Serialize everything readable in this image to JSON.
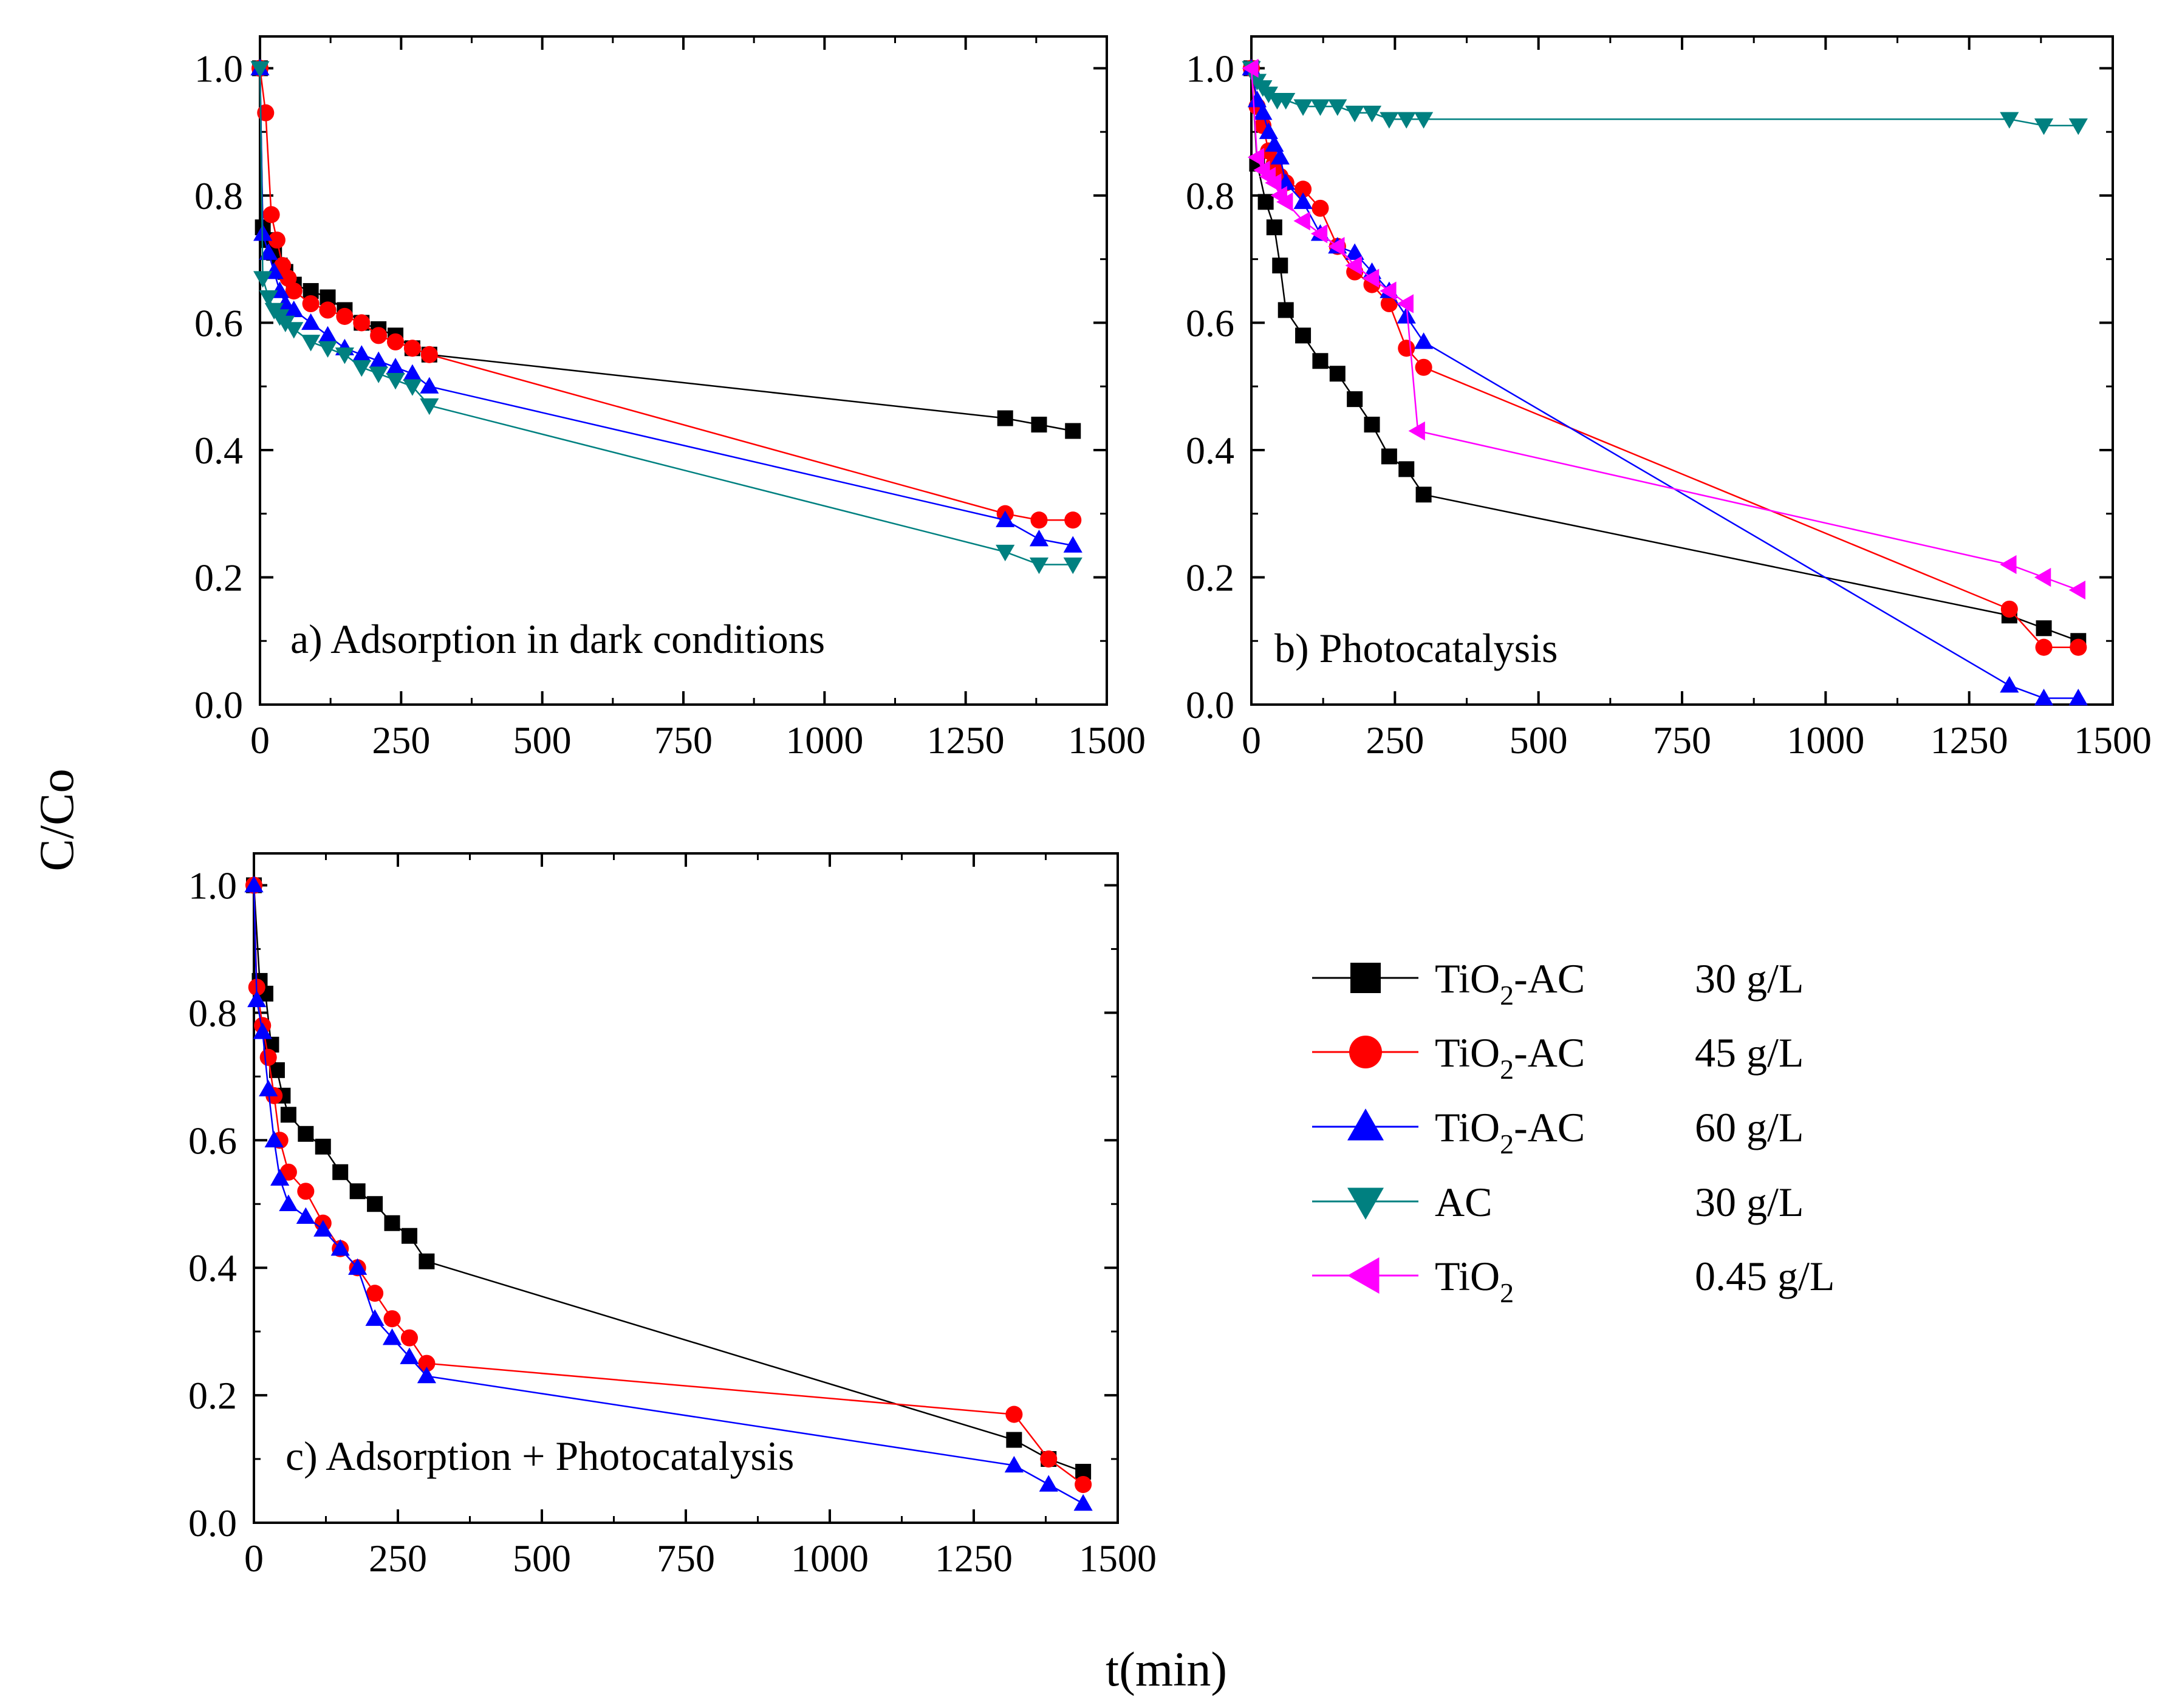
{
  "figure": {
    "ylabel": "C/Co",
    "xlabel": "t(min)"
  },
  "series_styles": [
    {
      "key": "s30",
      "color": "#000000",
      "marker": "square"
    },
    {
      "key": "s45",
      "color": "#ff0000",
      "marker": "circle"
    },
    {
      "key": "s60",
      "color": "#0000ff",
      "marker": "triangle-up"
    },
    {
      "key": "ac",
      "color": "#008080",
      "marker": "triangle-down"
    },
    {
      "key": "tio2",
      "color": "#ff00ff",
      "marker": "triangle-left"
    }
  ],
  "legend": {
    "items": [
      {
        "key": "s30",
        "name_main": "TiO",
        "name_sub": "2",
        "name_rest": "-AC",
        "dose": "30 g/L"
      },
      {
        "key": "s45",
        "name_main": "TiO",
        "name_sub": "2",
        "name_rest": "-AC",
        "dose": "45 g/L"
      },
      {
        "key": "s60",
        "name_main": "TiO",
        "name_sub": "2",
        "name_rest": "-AC",
        "dose": "60 g/L"
      },
      {
        "key": "ac",
        "name_main": "AC",
        "name_sub": "",
        "name_rest": "",
        "dose": "30 g/L"
      },
      {
        "key": "tio2",
        "name_main": "TiO",
        "name_sub": "2",
        "name_rest": "",
        "dose": "0.45 g/L"
      }
    ]
  },
  "chart_data": [
    {
      "id": "a",
      "type": "line",
      "title": "a) Adsorption in dark conditions",
      "xlim": [
        0,
        1500
      ],
      "ylim": [
        0,
        1.05
      ],
      "xticks": [
        0,
        250,
        500,
        750,
        1000,
        1250,
        1500
      ],
      "yticks": [
        0.0,
        0.2,
        0.4,
        0.6,
        0.8,
        1.0
      ],
      "series": [
        {
          "key": "s30",
          "x": [
            0,
            5,
            15,
            25,
            35,
            45,
            60,
            90,
            120,
            150,
            180,
            210,
            240,
            270,
            300,
            1320,
            1380,
            1440
          ],
          "y": [
            1.0,
            0.75,
            0.73,
            0.71,
            0.69,
            0.68,
            0.66,
            0.65,
            0.64,
            0.62,
            0.6,
            0.59,
            0.58,
            0.56,
            0.55,
            0.45,
            0.44,
            0.43
          ]
        },
        {
          "key": "s45",
          "x": [
            0,
            10,
            20,
            30,
            40,
            50,
            60,
            90,
            120,
            150,
            180,
            210,
            240,
            270,
            300,
            1320,
            1380,
            1440
          ],
          "y": [
            1.0,
            0.93,
            0.77,
            0.73,
            0.69,
            0.67,
            0.65,
            0.63,
            0.62,
            0.61,
            0.6,
            0.58,
            0.57,
            0.56,
            0.55,
            0.3,
            0.29,
            0.29
          ]
        },
        {
          "key": "s60",
          "x": [
            0,
            5,
            15,
            25,
            35,
            45,
            60,
            90,
            120,
            150,
            180,
            210,
            240,
            270,
            300,
            1320,
            1380,
            1440
          ],
          "y": [
            1.0,
            0.74,
            0.71,
            0.68,
            0.65,
            0.63,
            0.62,
            0.6,
            0.58,
            0.56,
            0.55,
            0.54,
            0.53,
            0.52,
            0.5,
            0.29,
            0.26,
            0.25
          ]
        },
        {
          "key": "ac",
          "x": [
            0,
            5,
            15,
            25,
            35,
            45,
            60,
            90,
            120,
            150,
            180,
            210,
            240,
            270,
            300,
            1320,
            1380,
            1440
          ],
          "y": [
            1.0,
            0.67,
            0.64,
            0.62,
            0.61,
            0.6,
            0.59,
            0.57,
            0.56,
            0.55,
            0.53,
            0.52,
            0.51,
            0.5,
            0.47,
            0.24,
            0.22,
            0.22
          ]
        }
      ]
    },
    {
      "id": "b",
      "type": "line",
      "title": "b) Photocatalysis",
      "xlim": [
        0,
        1500
      ],
      "ylim": [
        0,
        1.05
      ],
      "xticks": [
        0,
        250,
        500,
        750,
        1000,
        1250,
        1500
      ],
      "yticks": [
        0.0,
        0.2,
        0.4,
        0.6,
        0.8,
        1.0
      ],
      "series": [
        {
          "key": "s30",
          "x": [
            0,
            10,
            25,
            40,
            50,
            60,
            90,
            120,
            150,
            180,
            210,
            240,
            270,
            300,
            1320,
            1380,
            1440
          ],
          "y": [
            1.0,
            0.85,
            0.79,
            0.75,
            0.69,
            0.62,
            0.58,
            0.54,
            0.52,
            0.48,
            0.44,
            0.39,
            0.37,
            0.33,
            0.14,
            0.12,
            0.1
          ]
        },
        {
          "key": "s45",
          "x": [
            0,
            10,
            20,
            30,
            40,
            50,
            60,
            90,
            120,
            150,
            180,
            210,
            240,
            270,
            300,
            1320,
            1380,
            1440
          ],
          "y": [
            1.0,
            0.94,
            0.91,
            0.87,
            0.85,
            0.83,
            0.82,
            0.81,
            0.78,
            0.72,
            0.68,
            0.66,
            0.63,
            0.56,
            0.53,
            0.15,
            0.09,
            0.09
          ]
        },
        {
          "key": "s60",
          "x": [
            0,
            10,
            20,
            30,
            40,
            50,
            60,
            90,
            120,
            150,
            180,
            210,
            240,
            270,
            300,
            1320,
            1380,
            1440
          ],
          "y": [
            1.0,
            0.95,
            0.93,
            0.9,
            0.88,
            0.86,
            0.82,
            0.79,
            0.74,
            0.72,
            0.71,
            0.68,
            0.65,
            0.61,
            0.57,
            0.03,
            0.01,
            0.01
          ]
        },
        {
          "key": "ac",
          "x": [
            0,
            10,
            20,
            30,
            45,
            60,
            90,
            120,
            150,
            180,
            210,
            240,
            270,
            300,
            1320,
            1380,
            1440
          ],
          "y": [
            1.0,
            0.98,
            0.97,
            0.96,
            0.95,
            0.95,
            0.94,
            0.94,
            0.94,
            0.93,
            0.93,
            0.92,
            0.92,
            0.92,
            0.92,
            0.91,
            0.91
          ]
        },
        {
          "key": "tio2",
          "x": [
            0,
            10,
            20,
            30,
            40,
            50,
            60,
            90,
            120,
            150,
            180,
            210,
            240,
            270,
            290,
            1320,
            1380,
            1440
          ],
          "y": [
            1.0,
            0.86,
            0.84,
            0.83,
            0.82,
            0.8,
            0.79,
            0.76,
            0.74,
            0.72,
            0.69,
            0.67,
            0.65,
            0.63,
            0.43,
            0.22,
            0.2,
            0.18
          ]
        }
      ]
    },
    {
      "id": "c",
      "type": "line",
      "title": "c) Adsorption + Photocatalysis",
      "xlim": [
        0,
        1500
      ],
      "ylim": [
        0,
        1.05
      ],
      "xticks": [
        0,
        250,
        500,
        750,
        1000,
        1250,
        1500
      ],
      "yticks": [
        0.0,
        0.2,
        0.4,
        0.6,
        0.8,
        1.0
      ],
      "series": [
        {
          "key": "s30",
          "x": [
            0,
            10,
            20,
            30,
            40,
            50,
            60,
            90,
            120,
            150,
            180,
            210,
            240,
            270,
            300,
            1320,
            1380,
            1440
          ],
          "y": [
            1.0,
            0.85,
            0.83,
            0.75,
            0.71,
            0.67,
            0.64,
            0.61,
            0.59,
            0.55,
            0.52,
            0.5,
            0.47,
            0.45,
            0.41,
            0.13,
            0.1,
            0.08
          ]
        },
        {
          "key": "s45",
          "x": [
            0,
            5,
            15,
            25,
            35,
            45,
            60,
            90,
            120,
            150,
            180,
            210,
            240,
            270,
            300,
            1320,
            1380,
            1440
          ],
          "y": [
            1.0,
            0.84,
            0.78,
            0.73,
            0.67,
            0.6,
            0.55,
            0.52,
            0.47,
            0.43,
            0.4,
            0.36,
            0.32,
            0.29,
            0.25,
            0.17,
            0.1,
            0.06
          ]
        },
        {
          "key": "s60",
          "x": [
            0,
            5,
            15,
            25,
            35,
            45,
            60,
            90,
            120,
            150,
            180,
            210,
            240,
            270,
            300,
            1320,
            1380,
            1440
          ],
          "y": [
            1.0,
            0.82,
            0.77,
            0.68,
            0.6,
            0.54,
            0.5,
            0.48,
            0.46,
            0.43,
            0.4,
            0.32,
            0.29,
            0.26,
            0.23,
            0.09,
            0.06,
            0.03
          ]
        }
      ]
    }
  ]
}
